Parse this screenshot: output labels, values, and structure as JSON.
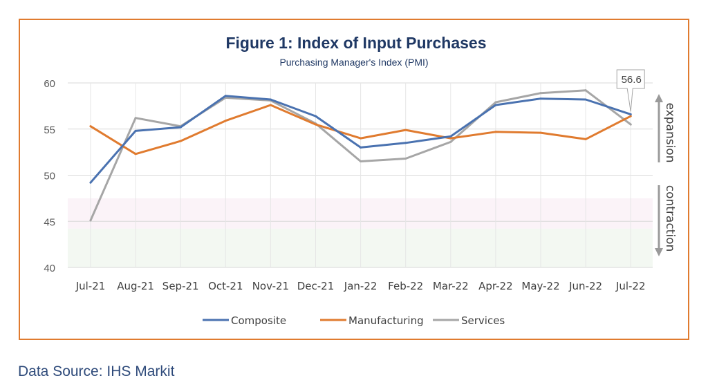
{
  "chart_data": {
    "type": "line",
    "title": "Figure 1: Index of Input Purchases",
    "subtitle": "Purchasing Manager's Index (PMI)",
    "categories": [
      "Jul-21",
      "Aug-21",
      "Sep-21",
      "Oct-21",
      "Nov-21",
      "Dec-21",
      "Jan-22",
      "Feb-22",
      "Mar-22",
      "Apr-22",
      "May-22",
      "Jun-22",
      "Jul-22"
    ],
    "ylim": [
      40,
      60
    ],
    "yticks": [
      40,
      45,
      50,
      55,
      60
    ],
    "grid": true,
    "series": [
      {
        "name": "Composite",
        "color": "#4a72b0",
        "values": [
          49.2,
          54.8,
          55.2,
          58.6,
          58.2,
          56.4,
          53.0,
          53.5,
          54.2,
          57.6,
          58.3,
          58.2,
          56.6
        ]
      },
      {
        "name": "Manufacturing",
        "color": "#e07b2f",
        "values": [
          55.3,
          52.3,
          53.7,
          55.9,
          57.6,
          55.5,
          54.0,
          54.9,
          54.0,
          54.7,
          54.6,
          53.9,
          56.4
        ]
      },
      {
        "name": "Services",
        "color": "#a6a6a6",
        "values": [
          45.1,
          56.2,
          55.3,
          58.4,
          58.1,
          55.6,
          51.5,
          51.8,
          53.6,
          57.9,
          58.9,
          59.2,
          55.5
        ]
      }
    ],
    "annotations": {
      "callout": "56.6",
      "expansion": "expansion",
      "contraction": "contraction"
    },
    "legend_position": "bottom"
  },
  "footer": {
    "source": "Data Source: IHS Markit"
  }
}
